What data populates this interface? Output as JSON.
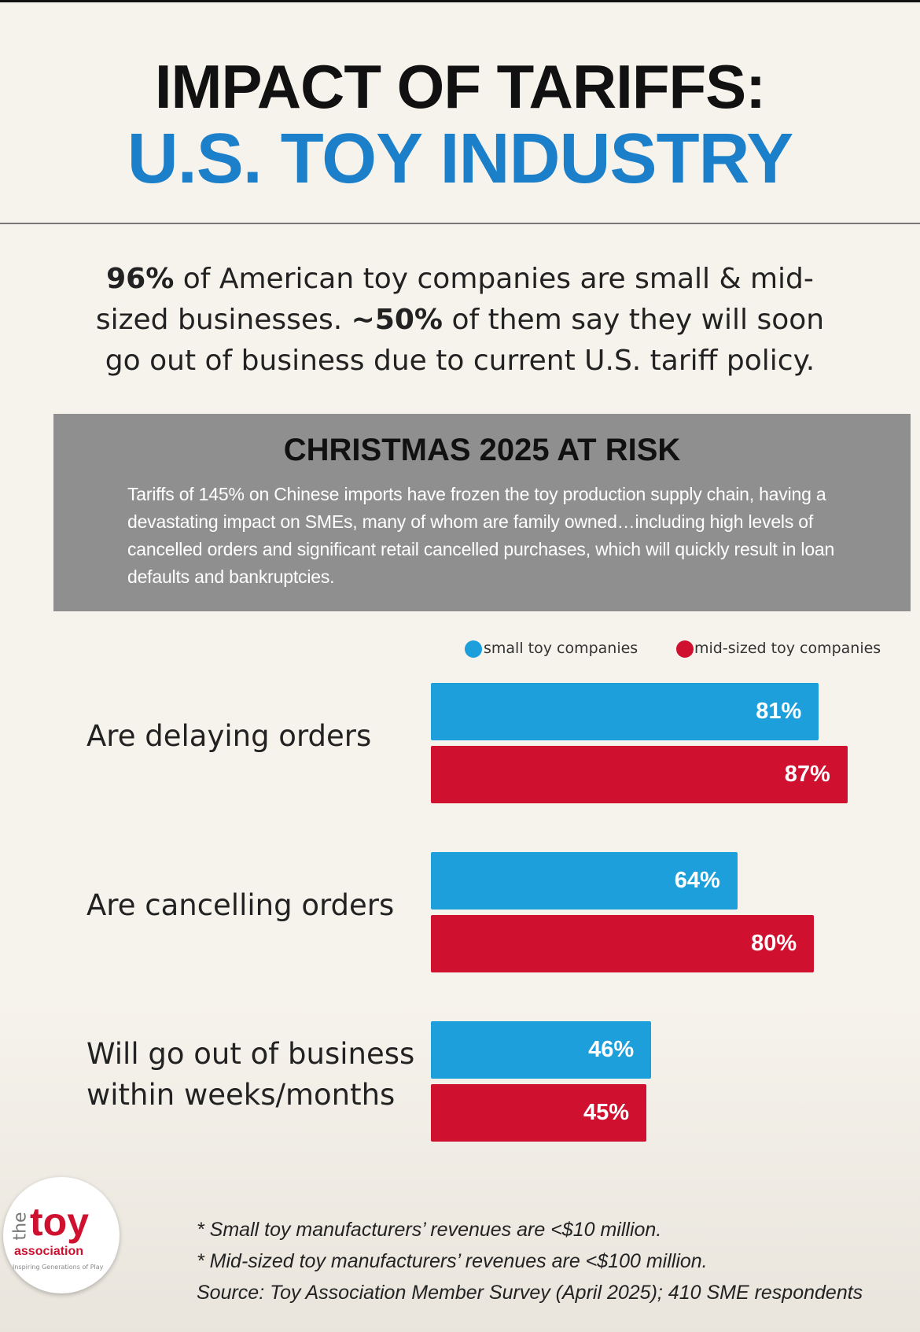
{
  "header": {
    "title_line1": "IMPACT OF TARIFFS:",
    "title_line2": "U.S. TOY INDUSTRY"
  },
  "intro": [
    "96%",
    " of American toy companies are small & mid-sized businesses. ",
    "~50%",
    " of them say they will soon go out of business due to current U.S. tariff policy."
  ],
  "callout": {
    "title": "CHRISTMAS 2025 AT RISK",
    "text": "Tariffs of 145% on Chinese imports have frozen the toy production supply chain, having a devastating impact on SMEs, many of whom are family owned…including high levels of cancelled orders and significant retail cancelled purchases, which will quickly result in loan defaults and bankruptcies."
  },
  "chart_data": {
    "type": "bar",
    "orientation": "horizontal",
    "categories": [
      "Are delaying orders",
      "Are cancelling orders",
      "Will go out of business within weeks/months"
    ],
    "series": [
      {
        "name": "small toy companies",
        "color": "#1d9fdc",
        "values": [
          81,
          64,
          46
        ],
        "value_labels": [
          "81%",
          "64%",
          "46%"
        ]
      },
      {
        "name": "mid-sized toy companies",
        "color": "#d0102f",
        "values": [
          87,
          80,
          45
        ],
        "value_labels": [
          "87%",
          "80%",
          "45%"
        ]
      }
    ]
  },
  "footnotes": [
    "* Small toy manufacturers’ revenues are <$10 million.",
    "* Mid-sized toy manufacturers’ revenues are <$100 million.",
    "Source: Toy Association Member Survey (April 2025); 410 SME respondents"
  ],
  "logo": {
    "prefix": "the",
    "name": "toy",
    "sub": "association",
    "tagline": "Inspiring Generations of Play"
  }
}
